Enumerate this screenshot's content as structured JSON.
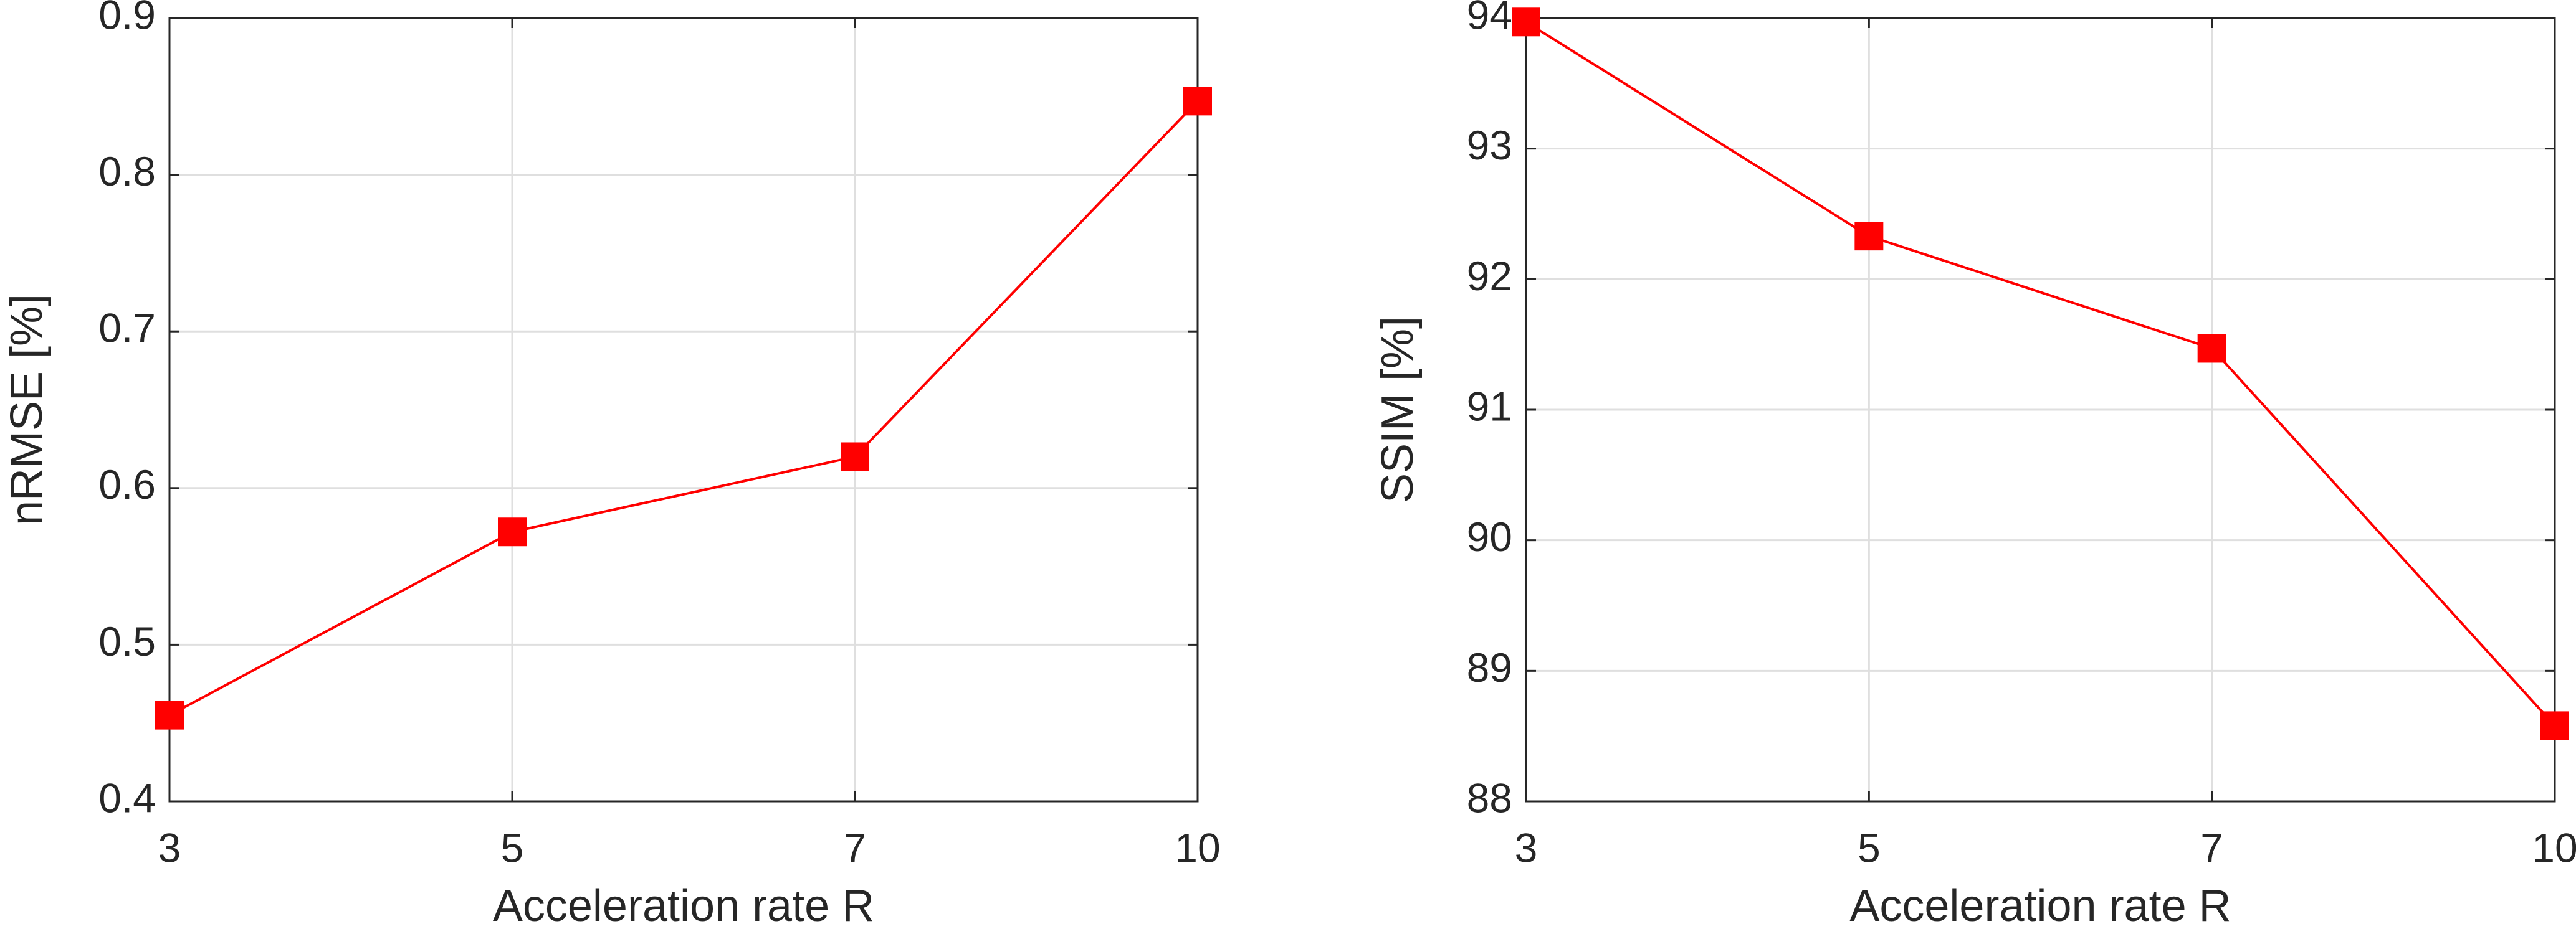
{
  "chart_data": [
    {
      "type": "line",
      "xlabel": "Acceleration rate R",
      "ylabel": "nRMSE [%]",
      "categories": [
        "3",
        "5",
        "7",
        "10"
      ],
      "values": [
        0.455,
        0.572,
        0.62,
        0.847
      ],
      "color": "#ff0000",
      "ylim": [
        0.4,
        0.9
      ],
      "yticks": [
        0.4,
        0.5,
        0.6,
        0.7,
        0.8,
        0.9
      ],
      "grid": true
    },
    {
      "type": "line",
      "xlabel": "Acceleration rate R",
      "ylabel": "SSIM [%]",
      "categories": [
        "3",
        "5",
        "7",
        "10"
      ],
      "values": [
        93.97,
        92.33,
        91.47,
        88.58
      ],
      "color": "#ff0000",
      "ylim": [
        88,
        94
      ],
      "yticks": [
        88,
        89,
        90,
        91,
        92,
        93,
        94
      ],
      "grid": true
    }
  ]
}
